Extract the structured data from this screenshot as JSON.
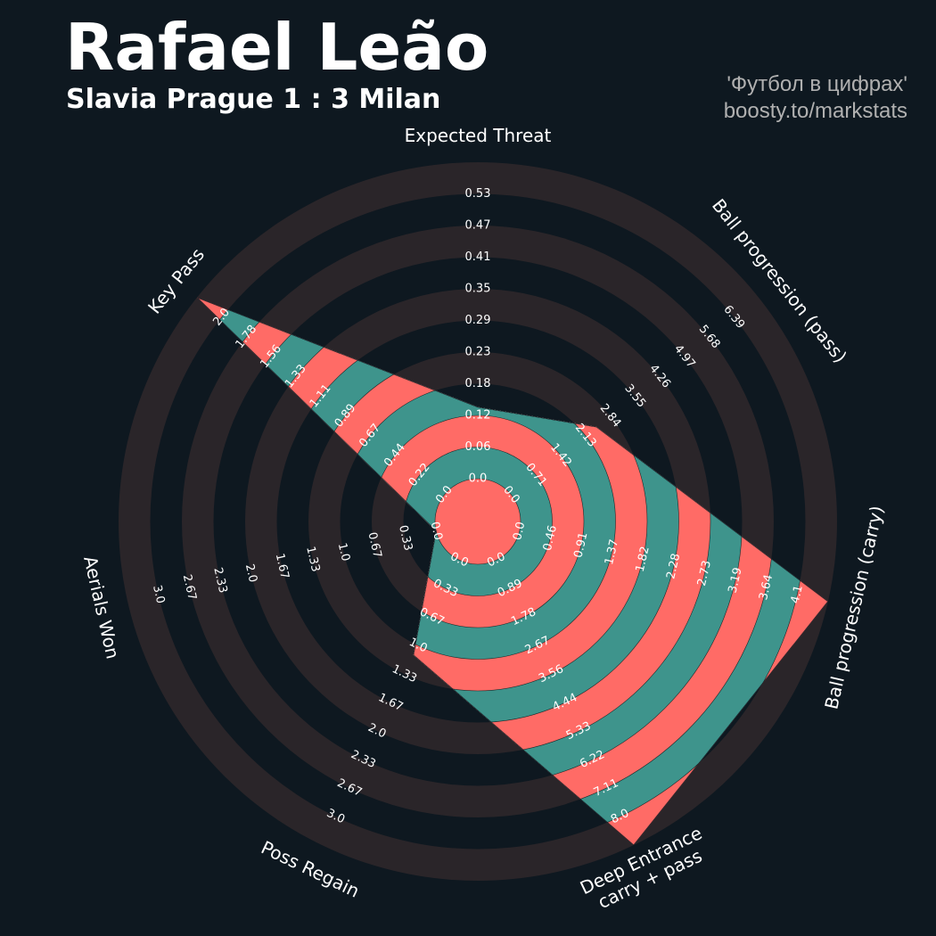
{
  "header": {
    "title": "Rafael Leão",
    "subtitle": "Slavia Prague 1 : 3 Milan",
    "credit_line1": "'Футбол в цифрах'",
    "credit_line2": "boosty.to/markstats"
  },
  "colors": {
    "background": "#0e1820",
    "ring_dark": "#2a2529",
    "ring_light": "#0e1820",
    "fill_teal": "#3e948c",
    "fill_coral": "#ff6b66"
  },
  "chart_data": {
    "type": "radar",
    "title": "Rafael Leão",
    "subtitle": "Slavia Prague 1 : 3 Milan",
    "grid": true,
    "rings": 10,
    "params": [
      {
        "label": "Expected Threat",
        "min": 0.0,
        "max": 0.53,
        "value": 0.12,
        "ticks": [
          "0.0",
          "0.06",
          "0.12",
          "0.18",
          "0.23",
          "0.29",
          "0.35",
          "0.41",
          "0.47",
          "0.53"
        ]
      },
      {
        "label": "Ball progression (pass)",
        "min": 0.0,
        "max": 6.39,
        "value": 2.2,
        "ticks": [
          "0.0",
          "0.71",
          "1.42",
          "2.13",
          "2.84",
          "3.55",
          "4.26",
          "4.97",
          "5.68",
          "6.39"
        ]
      },
      {
        "label": "Ball progression (carry)",
        "min": 0.0,
        "max": 4.1,
        "value": 4.1,
        "ticks": [
          "0.0",
          "0.46",
          "0.91",
          "1.37",
          "1.82",
          "2.28",
          "2.73",
          "3.19",
          "3.64",
          "4.1"
        ]
      },
      {
        "label": "Deep Entrance\ncarry + pass",
        "min": 0.0,
        "max": 8.0,
        "value": 8.0,
        "ticks": [
          "0.0",
          "0.89",
          "1.78",
          "2.67",
          "3.56",
          "4.44",
          "5.33",
          "6.22",
          "7.11",
          "8.0"
        ]
      },
      {
        "label": "Poss Regain",
        "min": 0.0,
        "max": 3.0,
        "value": 1.0,
        "ticks": [
          "0.0",
          "0.33",
          "0.67",
          "1.0",
          "1.33",
          "1.67",
          "2.0",
          "2.33",
          "2.67",
          "3.0"
        ]
      },
      {
        "label": "Aerials Won",
        "min": 0.0,
        "max": 3.0,
        "value": 0.0,
        "ticks": [
          "0.0",
          "0.33",
          "0.67",
          "1.0",
          "1.33",
          "1.67",
          "2.0",
          "2.33",
          "2.67",
          "3.0"
        ]
      },
      {
        "label": "Key Pass",
        "min": 0.0,
        "max": 2.0,
        "value": 2.0,
        "ticks": [
          "0.0",
          "0.22",
          "0.44",
          "0.67",
          "0.89",
          "1.11",
          "1.33",
          "1.56",
          "1.78",
          "2.0"
        ]
      }
    ]
  }
}
